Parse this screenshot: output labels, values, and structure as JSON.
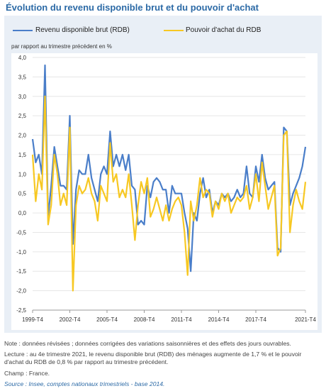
{
  "title": "Évolution du revenu disponible brut et du pouvoir d'achat",
  "colors": {
    "rdb": "#4a7ec9",
    "pa": "#f7c823",
    "axis": "#999999",
    "grid": "#e6e6e6"
  },
  "notes": {
    "note": "Note : données révisées ; données corrigées des variations saisonnières et des effets des jours ouvrables.",
    "lecture": "Lecture : au 4e trimestre 2021, le revenu disponible brut (RDB) des ménages augmente de 1,7 % et le pouvoir d'achat du RDB de 0,8 % par rapport au trimestre précédent.",
    "champ": "Champ : France.",
    "source": "Source : Insee, comptes nationaux trimestriels - base 2014."
  },
  "chart_data": {
    "type": "line",
    "title": "",
    "xlabel": "",
    "ylabel": "par rapport au trimestre précédent en %",
    "ylim": [
      -2.5,
      4.0
    ],
    "ytick_step": 0.5,
    "yticks": [
      "-2,5",
      "-2,0",
      "-1,5",
      "-1,0",
      "-0,5",
      "0,0",
      "0,5",
      "1,0",
      "1,5",
      "2,0",
      "2,5",
      "3,0",
      "3,5",
      "4,0"
    ],
    "x_ticks": [
      {
        "index": 0,
        "label": "1999-T4"
      },
      {
        "index": 12,
        "label": "2002-T4"
      },
      {
        "index": 24,
        "label": "2005-T4"
      },
      {
        "index": 36,
        "label": "2008-T4"
      },
      {
        "index": 48,
        "label": "2011-T4"
      },
      {
        "index": 60,
        "label": "2014-T4"
      },
      {
        "index": 72,
        "label": "2017-T4"
      },
      {
        "index": 88,
        "label": "2021-T4"
      }
    ],
    "legend_position": "top",
    "series": [
      {
        "name": "Revenu disponible brut (RDB)",
        "values": [
          1.9,
          1.3,
          1.5,
          1.0,
          3.8,
          -0.1,
          0.7,
          1.7,
          1.2,
          0.7,
          0.7,
          0.6,
          2.5,
          -0.8,
          0.6,
          1.1,
          1.0,
          1.0,
          1.5,
          0.9,
          0.6,
          0.3,
          1.0,
          1.2,
          1.0,
          2.1,
          1.2,
          1.5,
          1.2,
          1.5,
          1.1,
          1.5,
          0.7,
          0.6,
          -0.3,
          -0.2,
          -0.3,
          0.7,
          0.4,
          0.8,
          0.9,
          0.8,
          0.6,
          0.6,
          0.0,
          0.7,
          0.5,
          0.5,
          0.5,
          0.0,
          -0.4,
          -1.5,
          0.0,
          -0.2,
          0.5,
          0.9,
          0.4,
          0.6,
          0.0,
          0.3,
          0.2,
          0.5,
          0.4,
          0.5,
          0.3,
          0.4,
          0.6,
          0.4,
          0.5,
          1.2,
          0.5,
          0.4,
          1.2,
          0.8,
          1.5,
          0.9,
          0.6,
          0.7,
          0.8,
          -0.9,
          -1.0,
          2.2,
          2.1,
          0.2,
          0.5,
          0.7,
          0.9,
          1.2,
          1.7
        ]
      },
      {
        "name": "Pouvoir d'achat du RDB",
        "values": [
          1.5,
          0.3,
          1.0,
          0.6,
          3.0,
          -0.3,
          0.2,
          1.5,
          1.0,
          0.2,
          0.5,
          0.2,
          2.2,
          -2.0,
          0.2,
          0.7,
          0.5,
          0.6,
          0.9,
          0.5,
          0.3,
          -0.2,
          0.7,
          0.5,
          0.3,
          1.8,
          0.8,
          1.0,
          0.4,
          0.6,
          0.4,
          1.0,
          0.2,
          -0.7,
          0.2,
          0.8,
          0.5,
          0.9,
          -0.1,
          0.1,
          0.4,
          0.1,
          -0.2,
          0.2,
          -0.2,
          0.1,
          0.3,
          0.4,
          0.2,
          -0.5,
          -1.6,
          0.3,
          -0.2,
          0.2,
          0.9,
          0.4,
          0.6,
          0.5,
          -0.1,
          0.3,
          0.1,
          0.5,
          0.3,
          0.5,
          0.0,
          0.2,
          0.4,
          0.3,
          0.4,
          0.7,
          0.1,
          0.4,
          1.0,
          0.3,
          1.3,
          0.7,
          0.1,
          0.4,
          0.7,
          -1.1,
          -0.9,
          2.0,
          2.1,
          -0.5,
          0.2,
          0.6,
          0.3,
          0.1,
          0.8
        ]
      }
    ]
  }
}
